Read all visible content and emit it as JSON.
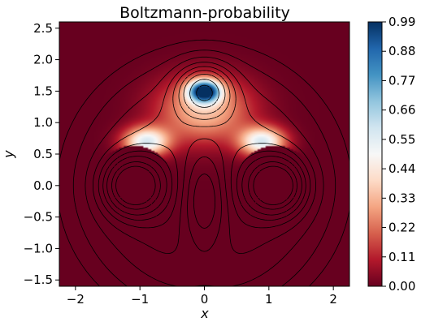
{
  "chart_data": {
    "type": "heatmap",
    "title": "Boltzmann-probability",
    "xlabel": "x",
    "ylabel": "y",
    "xlim": [
      -2.25,
      2.25
    ],
    "ylim": [
      -1.6,
      2.6
    ],
    "x_ticks": [
      -2,
      -1,
      0,
      1,
      2
    ],
    "x_tick_labels": [
      "−2",
      "−1",
      "0",
      "1",
      "2"
    ],
    "y_ticks": [
      -1.5,
      -1.0,
      -0.5,
      0.0,
      0.5,
      1.0,
      1.5,
      2.0,
      2.5
    ],
    "y_tick_labels": [
      "−1.5",
      "−1.0",
      "−0.5",
      "0.0",
      "0.5",
      "1.0",
      "1.5",
      "2.0",
      "2.5"
    ],
    "colorbar": {
      "colormap": "RdBu",
      "range": [
        0.0,
        0.99
      ],
      "ticks": [
        0.0,
        0.11,
        0.22,
        0.33,
        0.44,
        0.55,
        0.66,
        0.77,
        0.88,
        0.99
      ],
      "tick_labels": [
        "0.00",
        "0.11",
        "0.22",
        "0.33",
        "0.44",
        "0.55",
        "0.66",
        "0.77",
        "0.88",
        "0.99"
      ]
    },
    "overlay": "black potential-energy contour lines (solid and dashed)",
    "grid": false,
    "colors": {
      "low": "#67001f",
      "mid": "#f7f7f7",
      "high": "#053061"
    }
  }
}
